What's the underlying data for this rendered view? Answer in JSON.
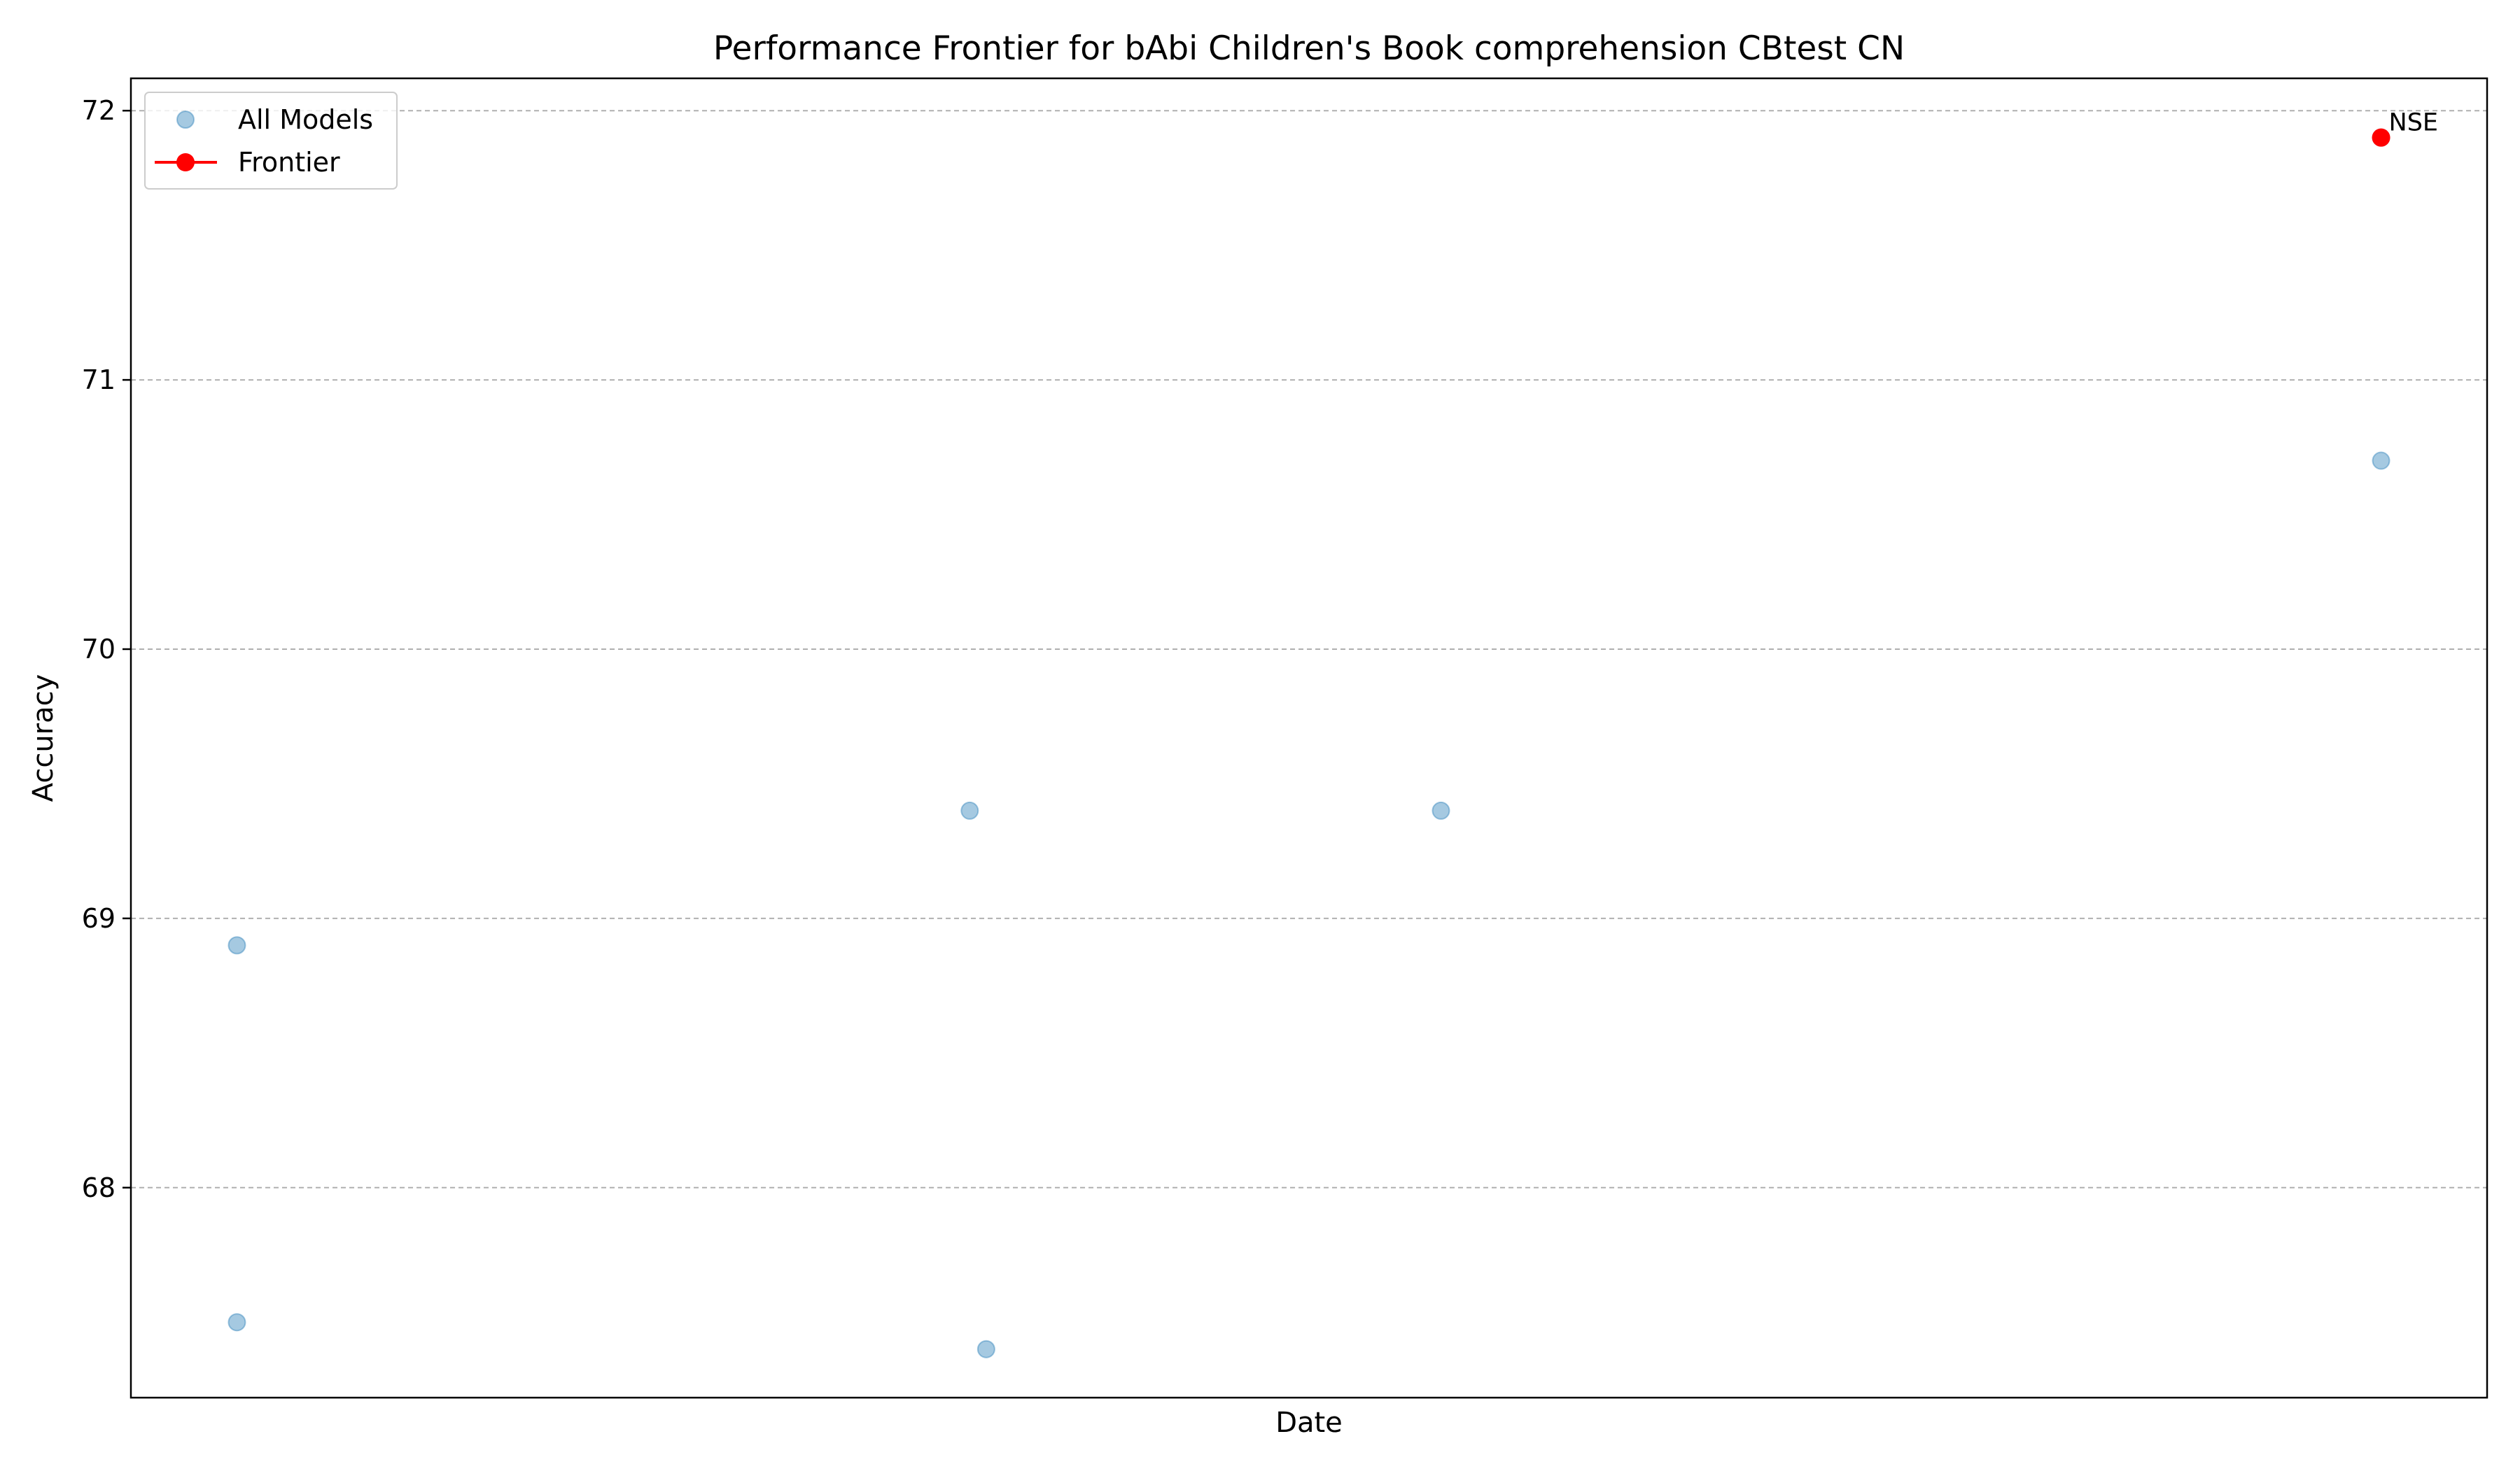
{
  "chart_data": {
    "type": "scatter",
    "title": "Performance Frontier for bAbi Children's Book comprehension CBtest CN",
    "xlabel": "Date",
    "ylabel": "Accuracy",
    "ylim": [
      67.22,
      72.12
    ],
    "yticks": [
      68,
      69,
      70,
      71,
      72
    ],
    "grid": "y",
    "legend_position": "top-left",
    "colors": {
      "all_models": "#1f77b4",
      "frontier": "#ff0000",
      "grid": "#b0b0b0"
    },
    "series": [
      {
        "name": "All Models",
        "marker": "circle",
        "alpha": 0.4,
        "points": [
          {
            "x": 0.045,
            "y": 68.9
          },
          {
            "x": 0.045,
            "y": 67.5
          },
          {
            "x": 0.356,
            "y": 69.4
          },
          {
            "x": 0.363,
            "y": 67.4
          },
          {
            "x": 0.556,
            "y": 69.4
          },
          {
            "x": 0.955,
            "y": 70.7
          },
          {
            "x": 0.955,
            "y": 71.9
          }
        ]
      },
      {
        "name": "Frontier",
        "marker": "circle",
        "line": true,
        "points": [
          {
            "x": 0.955,
            "y": 71.9,
            "label": "NSE"
          }
        ]
      }
    ]
  }
}
